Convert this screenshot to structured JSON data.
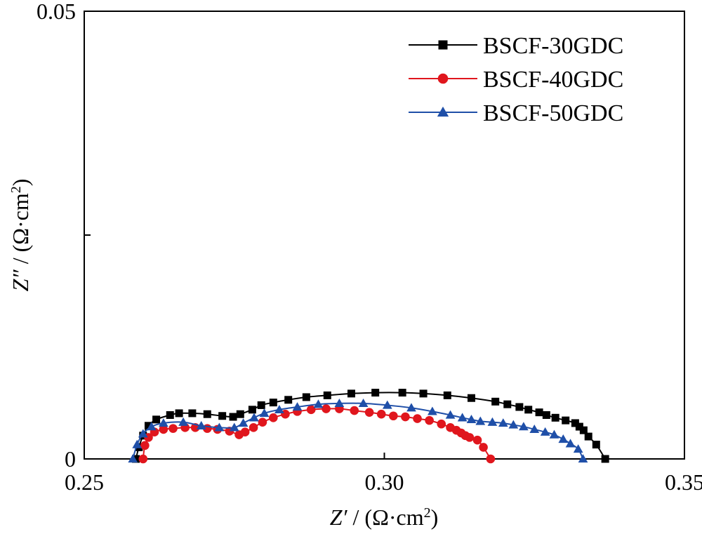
{
  "chart_data": {
    "type": "scatter",
    "xlabel": {
      "var": "Z′",
      "unit": " / (Ω·cm",
      "sup": "2",
      "close": ")"
    },
    "ylabel": {
      "var": "Z″",
      "unit": " / (Ω·cm",
      "sup": "2",
      "close": ")"
    },
    "xlim": [
      0.25,
      0.35
    ],
    "ylim": [
      0,
      0.05
    ],
    "x_ticks": [
      0.25,
      0.3,
      0.35
    ],
    "x_tick_labels": [
      "0.25",
      "0.30",
      "0.35"
    ],
    "y_ticks": [
      0,
      0.025,
      0.05
    ],
    "y_tick_labels": [
      "0",
      "",
      "0.05"
    ],
    "grid": false,
    "legend_position": "top-right",
    "series": [
      {
        "name": "BSCF-30GDC",
        "color": "#000000",
        "marker": "square",
        "points": [
          [
            0.2586,
            0.0
          ],
          [
            0.2591,
            0.0013
          ],
          [
            0.2598,
            0.0026
          ],
          [
            0.2607,
            0.0037
          ],
          [
            0.262,
            0.0044
          ],
          [
            0.2643,
            0.0049
          ],
          [
            0.2658,
            0.0051
          ],
          [
            0.268,
            0.0051
          ],
          [
            0.2705,
            0.005
          ],
          [
            0.273,
            0.0048
          ],
          [
            0.2748,
            0.0047
          ],
          [
            0.276,
            0.005
          ],
          [
            0.278,
            0.0055
          ],
          [
            0.2795,
            0.006
          ],
          [
            0.2815,
            0.0063
          ],
          [
            0.284,
            0.0066
          ],
          [
            0.287,
            0.0069
          ],
          [
            0.2905,
            0.0071
          ],
          [
            0.2945,
            0.0073
          ],
          [
            0.2985,
            0.0074
          ],
          [
            0.303,
            0.0074
          ],
          [
            0.3065,
            0.0073
          ],
          [
            0.3105,
            0.0071
          ],
          [
            0.3145,
            0.0068
          ],
          [
            0.3185,
            0.0064
          ],
          [
            0.3205,
            0.0061
          ],
          [
            0.3225,
            0.0058
          ],
          [
            0.324,
            0.0055
          ],
          [
            0.3258,
            0.0052
          ],
          [
            0.327,
            0.0049
          ],
          [
            0.3285,
            0.0046
          ],
          [
            0.3302,
            0.0043
          ],
          [
            0.3318,
            0.004
          ],
          [
            0.3325,
            0.0036
          ],
          [
            0.3332,
            0.0032
          ],
          [
            0.334,
            0.0025
          ],
          [
            0.3353,
            0.0016
          ],
          [
            0.3368,
            0.0
          ]
        ]
      },
      {
        "name": "BSCF-40GDC",
        "color": "#e0161d",
        "marker": "circle",
        "points": [
          [
            0.2598,
            0.0
          ],
          [
            0.2601,
            0.0015
          ],
          [
            0.2607,
            0.0024
          ],
          [
            0.2617,
            0.003
          ],
          [
            0.2632,
            0.0033
          ],
          [
            0.2648,
            0.0034
          ],
          [
            0.2668,
            0.0035
          ],
          [
            0.2685,
            0.0035
          ],
          [
            0.2705,
            0.0034
          ],
          [
            0.2722,
            0.0033
          ],
          [
            0.2742,
            0.0031
          ],
          [
            0.2758,
            0.0027
          ],
          [
            0.2768,
            0.003
          ],
          [
            0.2782,
            0.0035
          ],
          [
            0.2797,
            0.0041
          ],
          [
            0.2815,
            0.0046
          ],
          [
            0.2835,
            0.005
          ],
          [
            0.2855,
            0.0053
          ],
          [
            0.2878,
            0.0055
          ],
          [
            0.2903,
            0.0056
          ],
          [
            0.2925,
            0.0056
          ],
          [
            0.295,
            0.0054
          ],
          [
            0.2975,
            0.0052
          ],
          [
            0.2995,
            0.005
          ],
          [
            0.3015,
            0.0048
          ],
          [
            0.3035,
            0.0047
          ],
          [
            0.3055,
            0.0045
          ],
          [
            0.3075,
            0.0043
          ],
          [
            0.3095,
            0.0039
          ],
          [
            0.311,
            0.0035
          ],
          [
            0.312,
            0.0032
          ],
          [
            0.3128,
            0.0029
          ],
          [
            0.3135,
            0.0026
          ],
          [
            0.3142,
            0.0024
          ],
          [
            0.3155,
            0.0021
          ],
          [
            0.3165,
            0.0013
          ],
          [
            0.3177,
            0.0
          ]
        ]
      },
      {
        "name": "BSCF-50GDC",
        "color": "#1f4fa8",
        "marker": "triangle",
        "points": [
          [
            0.2581,
            0.0
          ],
          [
            0.2588,
            0.0016
          ],
          [
            0.2598,
            0.0028
          ],
          [
            0.2612,
            0.0036
          ],
          [
            0.2632,
            0.004
          ],
          [
            0.2665,
            0.0041
          ],
          [
            0.2695,
            0.0037
          ],
          [
            0.2725,
            0.0035
          ],
          [
            0.275,
            0.0035
          ],
          [
            0.2765,
            0.004
          ],
          [
            0.2783,
            0.0046
          ],
          [
            0.28,
            0.0051
          ],
          [
            0.2825,
            0.0055
          ],
          [
            0.2855,
            0.0058
          ],
          [
            0.289,
            0.0061
          ],
          [
            0.2925,
            0.0062
          ],
          [
            0.2965,
            0.0062
          ],
          [
            0.3005,
            0.006
          ],
          [
            0.3045,
            0.0057
          ],
          [
            0.308,
            0.0053
          ],
          [
            0.311,
            0.0049
          ],
          [
            0.313,
            0.0046
          ],
          [
            0.3145,
            0.0044
          ],
          [
            0.316,
            0.0042
          ],
          [
            0.318,
            0.0041
          ],
          [
            0.3198,
            0.004
          ],
          [
            0.3215,
            0.0038
          ],
          [
            0.3232,
            0.0036
          ],
          [
            0.325,
            0.0033
          ],
          [
            0.3268,
            0.003
          ],
          [
            0.3283,
            0.0027
          ],
          [
            0.3298,
            0.0022
          ],
          [
            0.331,
            0.0017
          ],
          [
            0.3323,
            0.0011
          ],
          [
            0.3331,
            0.0
          ]
        ]
      }
    ]
  }
}
